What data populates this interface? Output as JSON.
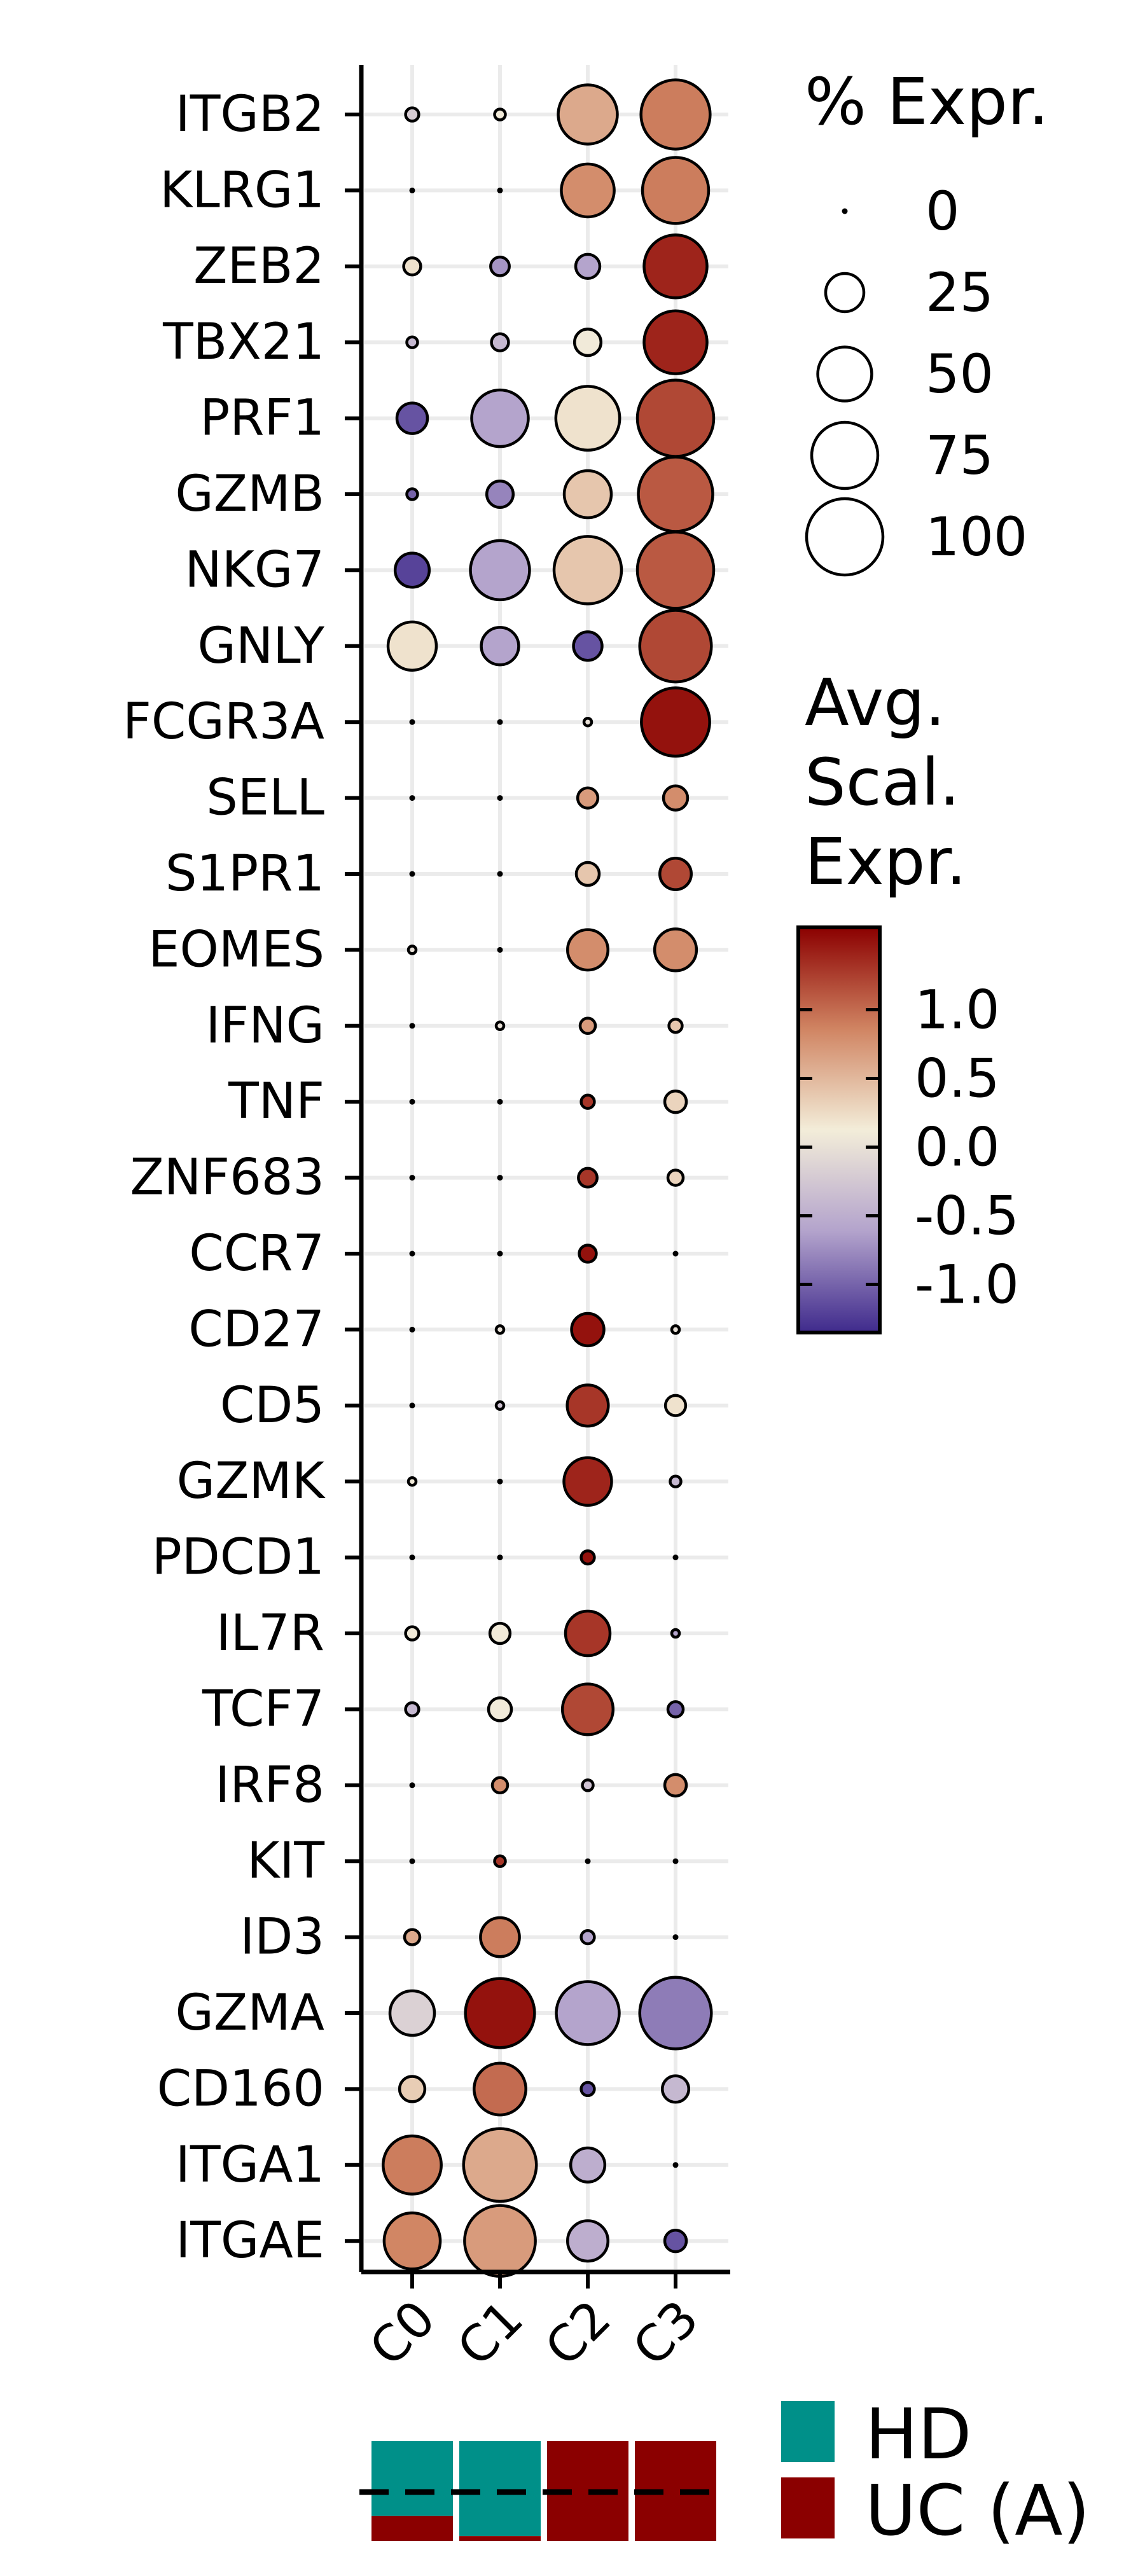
{
  "chart_data": {
    "type": "dotplot",
    "categories": [
      "C0",
      "C1",
      "C2",
      "C3"
    ],
    "genes": [
      "ITGB2",
      "KLRG1",
      "ZEB2",
      "TBX21",
      "PRF1",
      "GZMB",
      "NKG7",
      "GNLY",
      "FCGR3A",
      "SELL",
      "S1PR1",
      "EOMES",
      "IFNG",
      "TNF",
      "ZNF683",
      "CCR7",
      "CD27",
      "CD5",
      "GZMK",
      "PDCD1",
      "IL7R",
      "TCF7",
      "IRF8",
      "KIT",
      "ID3",
      "GZMA",
      "CD160",
      "ITGA1",
      "ITGAE"
    ],
    "pct_expr": [
      [
        3,
        2,
        60,
        82
      ],
      [
        0,
        0,
        48,
        75
      ],
      [
        5,
        6,
        10,
        68
      ],
      [
        2,
        5,
        12,
        68
      ],
      [
        16,
        55,
        70,
        100
      ],
      [
        2,
        12,
        38,
        95
      ],
      [
        20,
        60,
        78,
        100
      ],
      [
        40,
        24,
        14,
        88
      ],
      [
        0,
        0,
        1,
        80
      ],
      [
        0,
        0,
        7,
        10
      ],
      [
        0,
        0,
        9,
        17
      ],
      [
        1,
        0,
        28,
        30
      ],
      [
        0,
        1,
        4,
        3
      ],
      [
        0,
        0,
        3,
        8
      ],
      [
        0,
        0,
        6,
        4
      ],
      [
        0,
        0,
        5,
        0
      ],
      [
        0,
        1,
        18,
        1
      ],
      [
        0,
        1,
        29,
        7
      ],
      [
        1,
        0,
        39,
        2
      ],
      [
        0,
        0,
        3,
        0
      ],
      [
        3,
        7,
        34,
        1
      ],
      [
        3,
        9,
        44,
        4
      ],
      [
        0,
        4,
        2,
        8
      ],
      [
        0,
        2,
        0,
        0
      ],
      [
        4,
        26,
        3,
        0
      ],
      [
        34,
        82,
        68,
        88
      ],
      [
        11,
        46,
        3,
        12
      ],
      [
        58,
        91,
        20,
        0
      ],
      [
        54,
        86,
        28,
        8
      ]
    ],
    "avg_scaled_expr": [
      [
        -0.2,
        0.1,
        0.6,
        0.9
      ],
      [
        0,
        0,
        0.8,
        0.9
      ],
      [
        0.2,
        -0.7,
        -0.6,
        1.4
      ],
      [
        -0.4,
        -0.4,
        0.1,
        1.4
      ],
      [
        -1.1,
        -0.6,
        0.2,
        1.2
      ],
      [
        -1.0,
        -0.8,
        0.4,
        1.1
      ],
      [
        -1.2,
        -0.6,
        0.4,
        1.1
      ],
      [
        0.2,
        -0.6,
        -1.1,
        1.2
      ],
      [
        0,
        0,
        0,
        1.5
      ],
      [
        0,
        0,
        0.7,
        0.8
      ],
      [
        0,
        0,
        0.4,
        1.2
      ],
      [
        0,
        0,
        0.8,
        0.8
      ],
      [
        0,
        0,
        0.7,
        0.4
      ],
      [
        0,
        0,
        1.3,
        0.3
      ],
      [
        0,
        0,
        1.3,
        0.3
      ],
      [
        0,
        0,
        1.5,
        0
      ],
      [
        0,
        0,
        1.5,
        0
      ],
      [
        0,
        -0.3,
        1.3,
        0.2
      ],
      [
        0.1,
        0,
        1.4,
        -0.4
      ],
      [
        0,
        0,
        1.5,
        0
      ],
      [
        0.1,
        0.1,
        1.3,
        -0.6
      ],
      [
        -0.4,
        0.1,
        1.2,
        -1.0
      ],
      [
        0,
        0.8,
        -0.3,
        0.8
      ],
      [
        0,
        1.3,
        0,
        0
      ],
      [
        0.6,
        0.9,
        -0.6,
        0
      ],
      [
        -0.15,
        1.5,
        -0.6,
        -0.85
      ],
      [
        0.35,
        1.0,
        -1.1,
        -0.4
      ],
      [
        0.9,
        0.6,
        -0.5,
        0
      ],
      [
        0.85,
        0.7,
        -0.5,
        -1.1
      ]
    ],
    "size_legend": {
      "title": "% Expr.",
      "values": [
        0,
        25,
        50,
        75,
        100
      ]
    },
    "color_legend": {
      "title_lines": [
        "Avg.",
        "Scal.",
        "Expr."
      ],
      "range": [
        -1.35,
        1.6
      ],
      "ticks": [
        1.0,
        0.5,
        0.0,
        -0.5,
        -1.0
      ],
      "tick_labels": [
        "1.0",
        "0.5",
        "0.0",
        "-0.5",
        "-1.0"
      ],
      "colors": [
        "#3F2A8C",
        "#B3A3CC",
        "#F3EDD9",
        "#D08462",
        "#8B0000"
      ]
    },
    "composition": {
      "groups": [
        {
          "label": "HD",
          "color": "#009089"
        },
        {
          "label": "UC (A)",
          "color": "#8B0000"
        }
      ],
      "hd_fraction": [
        0.75,
        0.95,
        0.0,
        0.0
      ]
    }
  },
  "colors": {
    "grid": "#EBEBEB",
    "axis": "#000000",
    "dashed_line": "#000000"
  }
}
